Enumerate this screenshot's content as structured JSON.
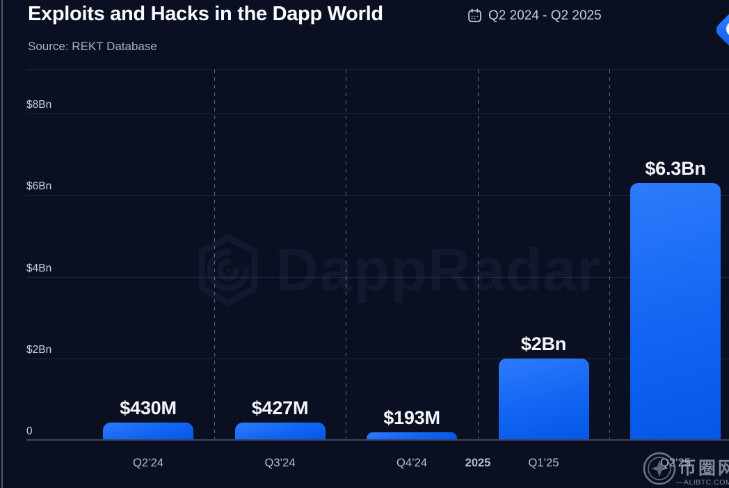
{
  "header": {
    "title": "Exploits and Hacks in the Dapp World",
    "date_range": "Q2 2024 - Q2 2025",
    "source": "Source: REKT Database",
    "calendar_icon": "calendar-icon",
    "brand_logo_icon": "dappradar-logo-icon"
  },
  "chart_data": {
    "type": "bar",
    "title": "Exploits and Hacks in the Dapp World",
    "subtitle": "Source: REKT Database",
    "period": "Q2 2024 - Q2 2025",
    "categories": [
      "Q2’24",
      "Q3’24",
      "Q4’24",
      "Q1’25",
      "Q2’25"
    ],
    "values_bn": [
      0.43,
      0.427,
      0.193,
      2,
      6.3
    ],
    "bar_labels": [
      "$430M",
      "$427M",
      "$193M",
      "$2Bn",
      "$6.3Bn"
    ],
    "year_separator_label": "2025",
    "year_separator_between": [
      "Q4’24",
      "Q1’25"
    ],
    "y_ticks": [
      {
        "label": "$8Bn",
        "bn": 8
      },
      {
        "label": "$6Bn",
        "bn": 6
      },
      {
        "label": "$4Bn",
        "bn": 4
      },
      {
        "label": "$2Bn",
        "bn": 2
      },
      {
        "label": "0",
        "bn": 0
      }
    ],
    "ylim": [
      0,
      8
    ],
    "xlabel": "",
    "ylabel": "",
    "legend": "none",
    "grid": "horizontal solid gridlines; dashed vertical separators between quarters",
    "bar_color_top": "#2e7bfc",
    "bar_color_bottom": "#0457e6",
    "background_color": "#0a1022"
  },
  "watermark": {
    "brand_text": "DappRadar"
  },
  "footer_watermark": {
    "cjk_text": "币圈网",
    "site_text": "—ALIBTC.COM—"
  }
}
